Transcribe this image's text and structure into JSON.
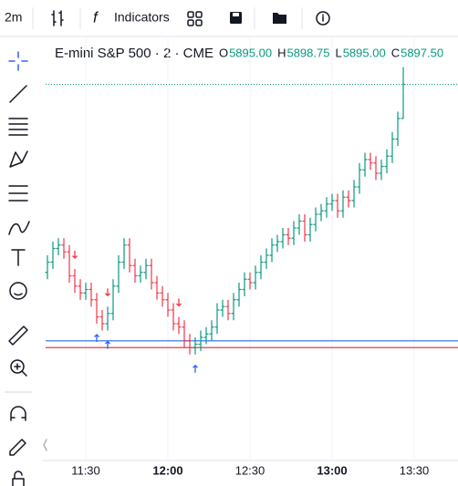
{
  "toolbar": {
    "interval": "2m",
    "indicators": "Indicators"
  },
  "header": {
    "symbol": "E-mini S&P 500 · 2 · CME",
    "ohlc": [
      {
        "label": "O",
        "value": "5895.00"
      },
      {
        "label": "H",
        "value": "5898.75"
      },
      {
        "label": "L",
        "value": "5895.00"
      },
      {
        "label": "C",
        "value": "5897.50"
      }
    ]
  },
  "chart_data": {
    "type": "ohlc",
    "x": [
      "11:16",
      "11:18",
      "11:20",
      "11:22",
      "11:24",
      "11:26",
      "11:28",
      "11:30",
      "11:32",
      "11:34",
      "11:36",
      "11:38",
      "11:40",
      "11:42",
      "11:44",
      "11:46",
      "11:48",
      "11:50",
      "11:52",
      "11:54",
      "11:56",
      "11:58",
      "12:00",
      "12:02",
      "12:04",
      "12:06",
      "12:08",
      "12:10",
      "12:12",
      "12:14",
      "12:16",
      "12:18",
      "12:20",
      "12:22",
      "12:24",
      "12:26",
      "12:28",
      "12:30",
      "12:32",
      "12:34",
      "12:36",
      "12:38",
      "12:40",
      "12:42",
      "12:44",
      "12:46",
      "12:48",
      "12:50",
      "12:52",
      "12:54",
      "12:56",
      "12:58",
      "13:00",
      "13:02",
      "13:04",
      "13:06",
      "13:08",
      "13:10",
      "13:12",
      "13:14",
      "13:16",
      "13:18",
      "13:20",
      "13:22",
      "13:24",
      "13:26"
    ],
    "open": [
      5883.75,
      5884.5,
      5885.5,
      5885.75,
      5885.25,
      5883.5,
      5882.75,
      5882.25,
      5882.5,
      5881.75,
      5880.5,
      5880,
      5880.75,
      5882.75,
      5884.5,
      5885.75,
      5884.25,
      5883.5,
      5883.75,
      5884.25,
      5883,
      5882.25,
      5881.75,
      5881,
      5880,
      5879.75,
      5878.75,
      5878.25,
      5878.5,
      5879,
      5879.25,
      5879.75,
      5881,
      5881.25,
      5880.75,
      5881.75,
      5882.5,
      5883.25,
      5883,
      5883.75,
      5884.5,
      5885,
      5885.75,
      5886,
      5886.5,
      5886.25,
      5887,
      5887.5,
      5886.5,
      5887.25,
      5888,
      5888.25,
      5888.75,
      5889,
      5888.25,
      5889.25,
      5889,
      5890,
      5891.25,
      5892,
      5891.75,
      5891,
      5891.5,
      5892.25,
      5893.5,
      5895
    ],
    "high": [
      5885,
      5886,
      5886.25,
      5886.25,
      5885.75,
      5884,
      5883.25,
      5883,
      5883,
      5882.25,
      5881,
      5881.25,
      5883.25,
      5885,
      5886.25,
      5886.25,
      5884.75,
      5884.25,
      5884.75,
      5884.75,
      5883.5,
      5882.75,
      5882.25,
      5881.5,
      5880.5,
      5880.25,
      5879.25,
      5879,
      5879.5,
      5879.75,
      5880.25,
      5881.5,
      5881.75,
      5881.75,
      5882.25,
      5883,
      5883.75,
      5883.75,
      5884.25,
      5885,
      5885.5,
      5886.25,
      5886.5,
      5887,
      5887,
      5887.5,
      5888,
      5888,
      5887.75,
      5888.5,
      5888.75,
      5889.25,
      5889.5,
      5889.5,
      5889.75,
      5889.75,
      5890.5,
      5891.75,
      5892.5,
      5892.5,
      5892.25,
      5892,
      5892.75,
      5894,
      5895.5,
      5898.75
    ],
    "low": [
      5883.25,
      5884,
      5885,
      5884.75,
      5883,
      5882.25,
      5881.75,
      5881.75,
      5881.25,
      5880,
      5879.5,
      5879.5,
      5880.25,
      5882.25,
      5884,
      5883.75,
      5883,
      5883,
      5883.25,
      5882.5,
      5881.75,
      5881.25,
      5880.5,
      5879.5,
      5879.25,
      5878.25,
      5877.75,
      5877.75,
      5878,
      5878.5,
      5878.75,
      5879.25,
      5880.5,
      5880.25,
      5880.25,
      5881.25,
      5882,
      5882.5,
      5882.5,
      5883.25,
      5884,
      5884.5,
      5885.25,
      5885.5,
      5885.75,
      5885.75,
      5886.5,
      5886,
      5886,
      5886.75,
      5887.5,
      5887.75,
      5888.25,
      5887.75,
      5887.75,
      5888.5,
      5888.5,
      5889.5,
      5890.75,
      5891.25,
      5890.5,
      5890.5,
      5891,
      5891.75,
      5893,
      5895
    ],
    "close": [
      5884.5,
      5885.5,
      5885.75,
      5885.25,
      5883.5,
      5882.75,
      5882.25,
      5882.5,
      5881.75,
      5880.5,
      5880,
      5880.75,
      5882.75,
      5884.5,
      5885.75,
      5884.25,
      5883.5,
      5883.75,
      5884.25,
      5883,
      5882.25,
      5881.75,
      5881,
      5880,
      5879.75,
      5878.75,
      5878.25,
      5878.5,
      5879,
      5879.25,
      5879.75,
      5881,
      5881.25,
      5880.75,
      5881.75,
      5882.5,
      5883.25,
      5883,
      5883.75,
      5884.5,
      5885,
      5885.75,
      5886,
      5886.5,
      5886.25,
      5887,
      5887.5,
      5886.5,
      5887.25,
      5888,
      5888.25,
      5888.75,
      5889,
      5888.25,
      5889.25,
      5889,
      5890,
      5891.25,
      5892,
      5891.75,
      5891,
      5891.5,
      5892.25,
      5893.5,
      5895,
      5897.5
    ],
    "xticks": [
      "11:30",
      "12:00",
      "12:30",
      "13:00",
      "13:30"
    ],
    "ylim": [
      5870,
      5901
    ],
    "up_color": "#089981",
    "down_color": "#f23645",
    "hlines": [
      {
        "value": 5878.75,
        "color": "#5b8def"
      },
      {
        "value": 5878.25,
        "color": "#e35d6a"
      }
    ],
    "signals": [
      {
        "index": 5,
        "direction": "down"
      },
      {
        "index": 11,
        "direction": "down"
      },
      {
        "index": 24,
        "direction": "down"
      },
      {
        "index": 9,
        "direction": "up"
      },
      {
        "index": 11,
        "direction": "up"
      },
      {
        "index": 27,
        "direction": "up"
      }
    ]
  }
}
